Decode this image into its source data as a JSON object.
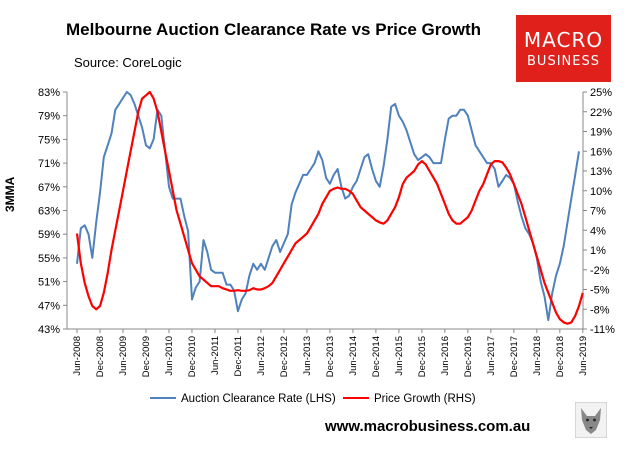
{
  "title": "Melbourne Auction Clearance Rate vs Price Growth",
  "source": "Source: CoreLogic",
  "logo": {
    "line1": "MACRO",
    "line2": "BUSINESS",
    "color": "#e0201b"
  },
  "url": "www.macrobusiness.com.au",
  "chart_data": {
    "type": "line",
    "title": "Melbourne Auction Clearance Rate vs Price Growth",
    "ylabel": "3MMA",
    "legend": "bottom-center",
    "grid": false,
    "left_axis": {
      "ticks": [
        "43%",
        "47%",
        "51%",
        "55%",
        "59%",
        "63%",
        "67%",
        "71%",
        "75%",
        "79%",
        "83%"
      ],
      "range": [
        43,
        83
      ]
    },
    "right_axis": {
      "ticks": [
        "-11%",
        "-8%",
        "-5%",
        "-2%",
        "1%",
        "4%",
        "7%",
        "10%",
        "13%",
        "16%",
        "19%",
        "22%",
        "25%"
      ],
      "range": [
        -11,
        25
      ]
    },
    "x_ticks": [
      "Jun-2008",
      "Dec-2008",
      "Jun-2009",
      "Dec-2009",
      "Jun-2010",
      "Dec-2010",
      "Jun-2011",
      "Dec-2011",
      "Jun-2012",
      "Dec-2012",
      "Jun-2013",
      "Dec-2013",
      "Jun-2014",
      "Dec-2014",
      "Jun-2015",
      "Dec-2015",
      "Jun-2016",
      "Dec-2016",
      "Jun-2017",
      "Dec-2017",
      "Jun-2018",
      "Dec-2018",
      "Jun-2019"
    ],
    "months_start": "Jun-2008",
    "series": [
      {
        "name": "Auction Clearance Rate (LHS)",
        "axis": "left",
        "color": "#4f81bd",
        "values": [
          54,
          60,
          60.5,
          59,
          55,
          61,
          66,
          72,
          74,
          76,
          80,
          81,
          82,
          83,
          82.5,
          81,
          79,
          77,
          74,
          73.5,
          75,
          80,
          79,
          73,
          67,
          65,
          65,
          65,
          62,
          59.5,
          48,
          50,
          51,
          58,
          56,
          53,
          52.5,
          52.5,
          52.5,
          50.5,
          50.5,
          49.5,
          46,
          48,
          49,
          52,
          54,
          53,
          54,
          53,
          55,
          57,
          58,
          56,
          57.5,
          59,
          64,
          66,
          67.5,
          69,
          69,
          70,
          71,
          73,
          71.5,
          68.5,
          67.5,
          69,
          70,
          67,
          65,
          65.5,
          67,
          68,
          70,
          72,
          72.5,
          70,
          68,
          67,
          70.5,
          75,
          80.5,
          81,
          79,
          78,
          76.5,
          74.5,
          72.5,
          71.5,
          72,
          72.5,
          72,
          71,
          71,
          71,
          75,
          78.5,
          79,
          79,
          80,
          80,
          79,
          76.5,
          74,
          73,
          72,
          71,
          71,
          70,
          67,
          68,
          69,
          68.5,
          67.5,
          64.5,
          62,
          60,
          59,
          57.5,
          55,
          51,
          48.5,
          44.5,
          49,
          52,
          54,
          57,
          61,
          65,
          69,
          73
        ]
      },
      {
        "name": "Price Growth (RHS)",
        "axis": "right",
        "color": "#ff0000",
        "values": [
          3.5,
          -1,
          -4,
          -6,
          -7.5,
          -8,
          -7.5,
          -5.5,
          -2.5,
          1,
          4,
          7,
          10,
          13,
          16,
          19,
          22,
          24,
          24.5,
          25,
          24,
          22,
          19,
          16,
          13,
          10,
          7,
          5,
          3,
          1,
          -1,
          -2,
          -3,
          -3.5,
          -4,
          -4.5,
          -4.5,
          -4.5,
          -4.8,
          -5,
          -5.2,
          -5.2,
          -5.1,
          -5.2,
          -5.2,
          -5.1,
          -4.8,
          -5,
          -5,
          -4.8,
          -4.5,
          -4,
          -3,
          -2,
          -1,
          0,
          1,
          2,
          2.5,
          3,
          3.5,
          4.5,
          5.5,
          6.5,
          8,
          9,
          10,
          10.3,
          10.5,
          10.3,
          10.3,
          10,
          9.5,
          8.5,
          7.5,
          7,
          6.5,
          6,
          5.5,
          5.2,
          5,
          5.5,
          6.5,
          7.5,
          9,
          11,
          12,
          12.5,
          13,
          14,
          14.5,
          14,
          13,
          12,
          11,
          9.5,
          8,
          6.5,
          5.5,
          5,
          5,
          5.5,
          6,
          7,
          8.5,
          10,
          11,
          12.5,
          14,
          14.5,
          14.5,
          14.3,
          13.5,
          12.5,
          11,
          9.5,
          8,
          6,
          4,
          2,
          0,
          -2,
          -4,
          -5.5,
          -7,
          -8.5,
          -9.5,
          -10,
          -10.2,
          -10,
          -9,
          -7.5,
          -5.5
        ]
      }
    ]
  }
}
